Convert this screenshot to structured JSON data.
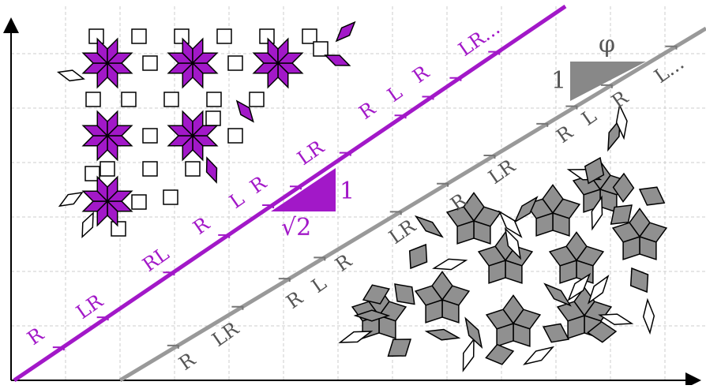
{
  "colors": {
    "purple": "#a218c8",
    "gray": "#999999",
    "dark_gray": "#555555",
    "tile_gray": "#909090",
    "grid": "#cccccc"
  },
  "purple_line": {
    "triangle_base": "√2",
    "triangle_height": "1",
    "labels": [
      "R",
      "LR",
      "RL",
      "R",
      "L",
      "R",
      "LR",
      "R",
      "L",
      "R",
      "LR..."
    ]
  },
  "gray_line": {
    "triangle_base": "φ",
    "triangle_height": "1",
    "labels": [
      "R",
      "LR",
      "R",
      "L",
      "R",
      "LR",
      "R",
      "LR",
      "R",
      "L",
      "R",
      "L..."
    ]
  },
  "icons": {
    "ammann_beenker_tiling": "ammann-beenker-tiling-icon",
    "penrose_tiling": "penrose-rhombus-tiling-icon"
  }
}
